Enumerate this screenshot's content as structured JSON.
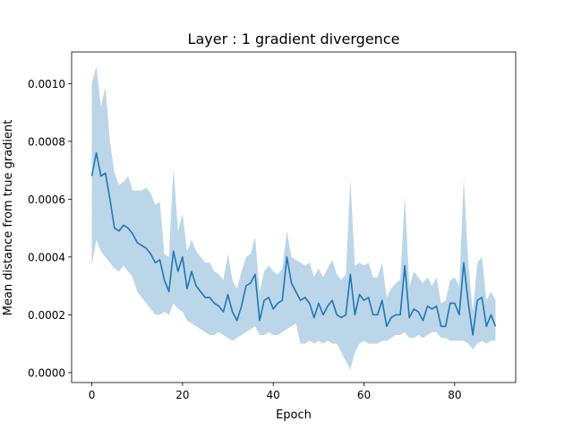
{
  "chart_data": {
    "type": "line",
    "title": "Layer : 1 gradient divergence",
    "xlabel": "Epoch",
    "ylabel": "Mean distance from true gradient",
    "xlim": [
      -4.45,
      93.45
    ],
    "ylim": [
      -3.44e-05,
      0.0011094
    ],
    "xticks": [
      0,
      20,
      40,
      60,
      80
    ],
    "xtick_labels": [
      "0",
      "20",
      "40",
      "60",
      "80"
    ],
    "yticks": [
      0.0,
      0.0002,
      0.0004,
      0.0006,
      0.0008,
      0.001
    ],
    "ytick_labels": [
      "0.0000",
      "0.0002",
      "0.0004",
      "0.0006",
      "0.0008",
      "0.0010"
    ],
    "grid": false,
    "colors": {
      "line": "#1f77b4",
      "band": "#1f77b4"
    },
    "series": [
      {
        "x": [
          0,
          1,
          2,
          3,
          4,
          5,
          6,
          7,
          8,
          9,
          10,
          11,
          12,
          13,
          14,
          15,
          16,
          17,
          18,
          19,
          20,
          21,
          22,
          23,
          24,
          25,
          26,
          27,
          28,
          29,
          30,
          31,
          32,
          33,
          34,
          35,
          36,
          37,
          38,
          39,
          40,
          41,
          42,
          43,
          44,
          45,
          46,
          47,
          48,
          49,
          50,
          51,
          52,
          53,
          54,
          55,
          56,
          57,
          58,
          59,
          60,
          61,
          62,
          63,
          64,
          65,
          66,
          67,
          68,
          69,
          70,
          71,
          72,
          73,
          74,
          75,
          76,
          77,
          78,
          79,
          80,
          81,
          82,
          83,
          84,
          85,
          86,
          87,
          88,
          89
        ],
        "y": [
          0.00068,
          0.00076,
          0.00068,
          0.00069,
          0.0006,
          0.0005,
          0.00049,
          0.00051,
          0.0005,
          0.00048,
          0.00045,
          0.00044,
          0.00043,
          0.00041,
          0.00038,
          0.00039,
          0.00032,
          0.00028,
          0.00042,
          0.00035,
          0.0004,
          0.00029,
          0.00035,
          0.0003,
          0.00028,
          0.00026,
          0.00026,
          0.00024,
          0.00023,
          0.00021,
          0.00027,
          0.00021,
          0.00018,
          0.00023,
          0.0003,
          0.00031,
          0.00034,
          0.00018,
          0.00025,
          0.00026,
          0.00022,
          0.00024,
          0.00025,
          0.0004,
          0.00031,
          0.00028,
          0.00025,
          0.00026,
          0.00024,
          0.00019,
          0.00024,
          0.0002,
          0.00023,
          0.00025,
          0.0002,
          0.00019,
          0.0002,
          0.00034,
          0.0002,
          0.00027,
          0.00025,
          0.00026,
          0.0002,
          0.0002,
          0.00025,
          0.00016,
          0.00019,
          0.0002,
          0.0002,
          0.00037,
          0.00019,
          0.00022,
          0.00021,
          0.00018,
          0.00023,
          0.00022,
          0.00023,
          0.00016,
          0.00016,
          0.00024,
          0.00024,
          0.0002,
          0.00038,
          0.00024,
          0.00013,
          0.00025,
          0.00026,
          0.00016,
          0.0002,
          0.00016
        ],
        "lower": [
          0.00037,
          0.00046,
          0.00042,
          0.0004,
          0.00038,
          0.00036,
          0.00035,
          0.00037,
          0.00035,
          0.00033,
          0.00028,
          0.00026,
          0.00024,
          0.00022,
          0.0002,
          0.0002,
          0.00021,
          0.0002,
          0.00024,
          0.00022,
          0.00021,
          0.00018,
          0.00017,
          0.00016,
          0.00015,
          0.00014,
          0.00013,
          0.00013,
          0.00014,
          0.00013,
          0.00012,
          0.00011,
          0.00012,
          0.00013,
          0.00014,
          0.00015,
          0.00016,
          0.00013,
          0.00013,
          0.00014,
          0.00013,
          0.00013,
          0.00014,
          0.00015,
          0.00016,
          0.00017,
          0.0001,
          0.0001,
          0.00011,
          0.0001,
          0.00011,
          0.0001,
          0.00011,
          0.0001,
          0.0001,
          7e-05,
          4e-05,
          1e-05,
          7e-05,
          0.0001,
          0.00011,
          0.0001,
          0.0001,
          0.0001,
          0.00011,
          0.00011,
          0.00012,
          0.00013,
          0.00013,
          0.00014,
          0.00012,
          0.00012,
          0.00013,
          0.00012,
          0.00013,
          0.00014,
          0.00014,
          0.00012,
          0.00012,
          0.00011,
          0.00011,
          0.00011,
          0.00011,
          0.0001,
          8e-05,
          0.0001,
          0.00011,
          0.0001,
          0.00011,
          0.00011
        ],
        "upper": [
          0.001,
          0.00106,
          0.00092,
          0.00099,
          0.0008,
          0.00069,
          0.00065,
          0.00066,
          0.00068,
          0.00063,
          0.00063,
          0.00063,
          0.00064,
          0.00062,
          0.00058,
          0.00059,
          0.00041,
          0.0004,
          0.00071,
          0.00049,
          0.00055,
          0.00042,
          0.00046,
          0.00042,
          0.0004,
          0.00038,
          0.00038,
          0.00035,
          0.00034,
          0.00032,
          0.00041,
          0.00032,
          0.00029,
          0.00035,
          0.0004,
          0.00041,
          0.00047,
          0.00028,
          0.00035,
          0.00037,
          0.00035,
          0.00034,
          0.00036,
          0.00049,
          0.0004,
          0.00039,
          0.00038,
          0.00037,
          0.00038,
          0.00033,
          0.00036,
          0.00033,
          0.00036,
          0.00039,
          0.00034,
          0.00032,
          0.00034,
          0.00067,
          0.00037,
          0.00038,
          0.00037,
          0.00038,
          0.00033,
          0.00033,
          0.00038,
          0.00026,
          0.00029,
          0.00031,
          0.00032,
          0.00061,
          0.0003,
          0.00035,
          0.00033,
          0.00031,
          0.00033,
          0.0003,
          0.00033,
          0.00024,
          0.00025,
          0.00032,
          0.00033,
          0.0003,
          0.00067,
          0.00038,
          0.00021,
          0.00038,
          0.0004,
          0.00025,
          0.00028,
          0.00025
        ]
      }
    ]
  }
}
